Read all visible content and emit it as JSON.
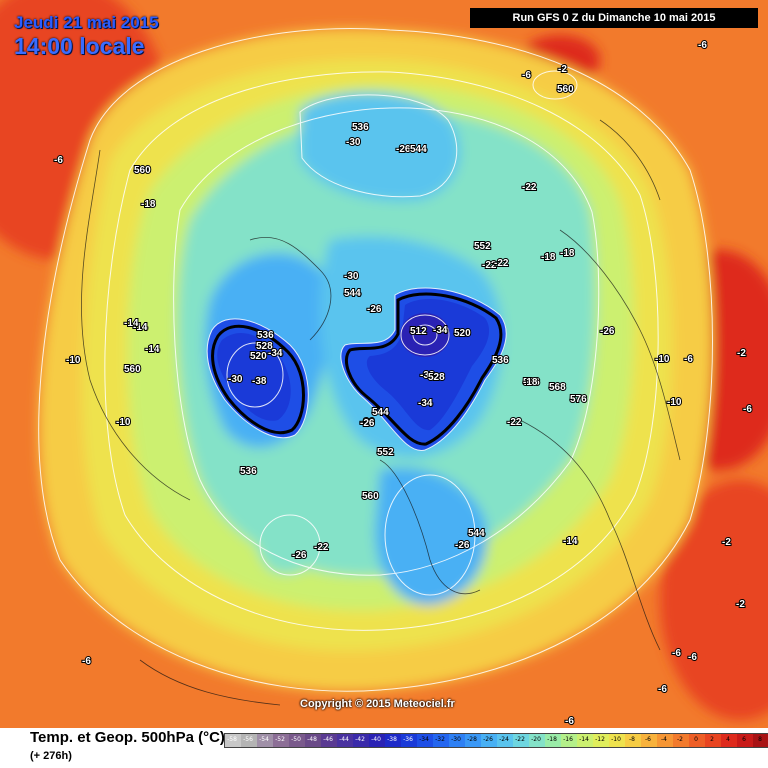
{
  "header": {
    "date": "Jeudi 21 mai 2015",
    "time": "14:00 locale",
    "run": "Run GFS 0 Z du Dimanche 10 mai 2015"
  },
  "footer": {
    "title": "Temp. et Geop. 500hPa (°C)",
    "forecast": "(+ 276h)",
    "copyright": "Copyright © 2015 Meteociel.fr"
  },
  "legend": {
    "ticks": [
      "-58",
      "-56",
      "-54",
      "-52",
      "-50",
      "-48",
      "-46",
      "-44",
      "-42",
      "-40",
      "-38",
      "-36",
      "-34",
      "-32",
      "-30",
      "-28",
      "-26",
      "-24",
      "-22",
      "-20",
      "-18",
      "-16",
      "-14",
      "-12",
      "-10",
      "-8",
      "-6",
      "-4",
      "-2",
      "0",
      "2",
      "4",
      "6",
      "8",
      "10"
    ],
    "colors": [
      "#c8c8c8",
      "#b4b4b4",
      "#a090a8",
      "#8c6e96",
      "#7a5a8c",
      "#6a4a88",
      "#5a3a92",
      "#4a32a0",
      "#3a2aaa",
      "#2a22b4",
      "#1e2ac8",
      "#1a3ad8",
      "#1e4ee6",
      "#2466f0",
      "#2e80f4",
      "#3a98f6",
      "#48b0f4",
      "#5ac4ee",
      "#6ed6e0",
      "#84e2c8",
      "#9aeca8",
      "#b4f08a",
      "#ccf070",
      "#e0ee5c",
      "#eee24e",
      "#f6cc44",
      "#f8b23c",
      "#f69634",
      "#f27a2c",
      "#ee5e26",
      "#e84420",
      "#de2a1c",
      "#c81a18",
      "#a81214",
      "#800c10"
    ]
  },
  "isobar_labels": [
    "536",
    "560",
    "544",
    "552",
    "528",
    "520",
    "512",
    "568",
    "576"
  ],
  "temp_labels": [
    "-30",
    "-38",
    "-34",
    "-26",
    "-22",
    "-18",
    "-14",
    "-10",
    "-6",
    "-2"
  ],
  "map_labels": [
    {
      "text": "536",
      "kind": "geo"
    },
    {
      "text": "-30",
      "kind": "temp"
    },
    {
      "text": "-26",
      "kind": "temp"
    },
    {
      "text": "544",
      "kind": "geo"
    },
    {
      "text": "-6",
      "kind": "temp"
    },
    {
      "text": "-2",
      "kind": "temp"
    },
    {
      "text": "560",
      "kind": "geo"
    },
    {
      "text": "-6",
      "kind": "temp"
    },
    {
      "text": "560",
      "kind": "geo"
    },
    {
      "text": "-18",
      "kind": "temp"
    },
    {
      "text": "-6",
      "kind": "temp"
    },
    {
      "text": "-22",
      "kind": "temp"
    },
    {
      "text": "552",
      "kind": "geo"
    },
    {
      "text": "-22",
      "kind": "temp"
    },
    {
      "text": "-22",
      "kind": "temp"
    },
    {
      "text": "-18",
      "kind": "temp"
    },
    {
      "text": "-18",
      "kind": "temp"
    },
    {
      "text": "-30",
      "kind": "temp"
    },
    {
      "text": "544",
      "kind": "geo"
    },
    {
      "text": "-26",
      "kind": "temp"
    },
    {
      "text": "512",
      "kind": "geo"
    },
    {
      "text": "-34",
      "kind": "temp"
    },
    {
      "text": "520",
      "kind": "geo"
    },
    {
      "text": "-26",
      "kind": "temp"
    },
    {
      "text": "536",
      "kind": "geo"
    },
    {
      "text": "528",
      "kind": "geo"
    },
    {
      "text": "520",
      "kind": "geo"
    },
    {
      "text": "-34",
      "kind": "temp"
    },
    {
      "text": "-30",
      "kind": "temp"
    },
    {
      "text": "-38",
      "kind": "temp"
    },
    {
      "text": "536",
      "kind": "geo"
    },
    {
      "text": "-32",
      "kind": "temp"
    },
    {
      "text": "528",
      "kind": "geo"
    },
    {
      "text": "-34",
      "kind": "temp"
    },
    {
      "text": "536",
      "kind": "geo"
    },
    {
      "text": "-18",
      "kind": "temp"
    },
    {
      "text": "568",
      "kind": "geo"
    },
    {
      "text": "576",
      "kind": "geo"
    },
    {
      "text": "-10",
      "kind": "temp"
    },
    {
      "text": "-6",
      "kind": "temp"
    },
    {
      "text": "-2",
      "kind": "temp"
    },
    {
      "text": "-10",
      "kind": "temp"
    },
    {
      "text": "-6",
      "kind": "temp"
    },
    {
      "text": "-26",
      "kind": "temp"
    },
    {
      "text": "544",
      "kind": "geo"
    },
    {
      "text": "-26",
      "kind": "temp"
    },
    {
      "text": "552",
      "kind": "geo"
    },
    {
      "text": "-22",
      "kind": "temp"
    },
    {
      "text": "-14",
      "kind": "temp"
    },
    {
      "text": "-14",
      "kind": "temp"
    },
    {
      "text": "-14",
      "kind": "temp"
    },
    {
      "text": "-10",
      "kind": "temp"
    },
    {
      "text": "560",
      "kind": "geo"
    },
    {
      "text": "-10",
      "kind": "temp"
    },
    {
      "text": "536",
      "kind": "geo"
    },
    {
      "text": "560",
      "kind": "geo"
    },
    {
      "text": "-26",
      "kind": "temp"
    },
    {
      "text": "-22",
      "kind": "temp"
    },
    {
      "text": "544",
      "kind": "geo"
    },
    {
      "text": "-26",
      "kind": "temp"
    },
    {
      "text": "-14",
      "kind": "temp"
    },
    {
      "text": "-2",
      "kind": "temp"
    },
    {
      "text": "-2",
      "kind": "temp"
    },
    {
      "text": "-6",
      "kind": "temp"
    },
    {
      "text": "-6",
      "kind": "temp"
    },
    {
      "text": "-6",
      "kind": "temp"
    },
    {
      "text": "-6",
      "kind": "temp"
    },
    {
      "text": "-6",
      "kind": "temp"
    }
  ]
}
